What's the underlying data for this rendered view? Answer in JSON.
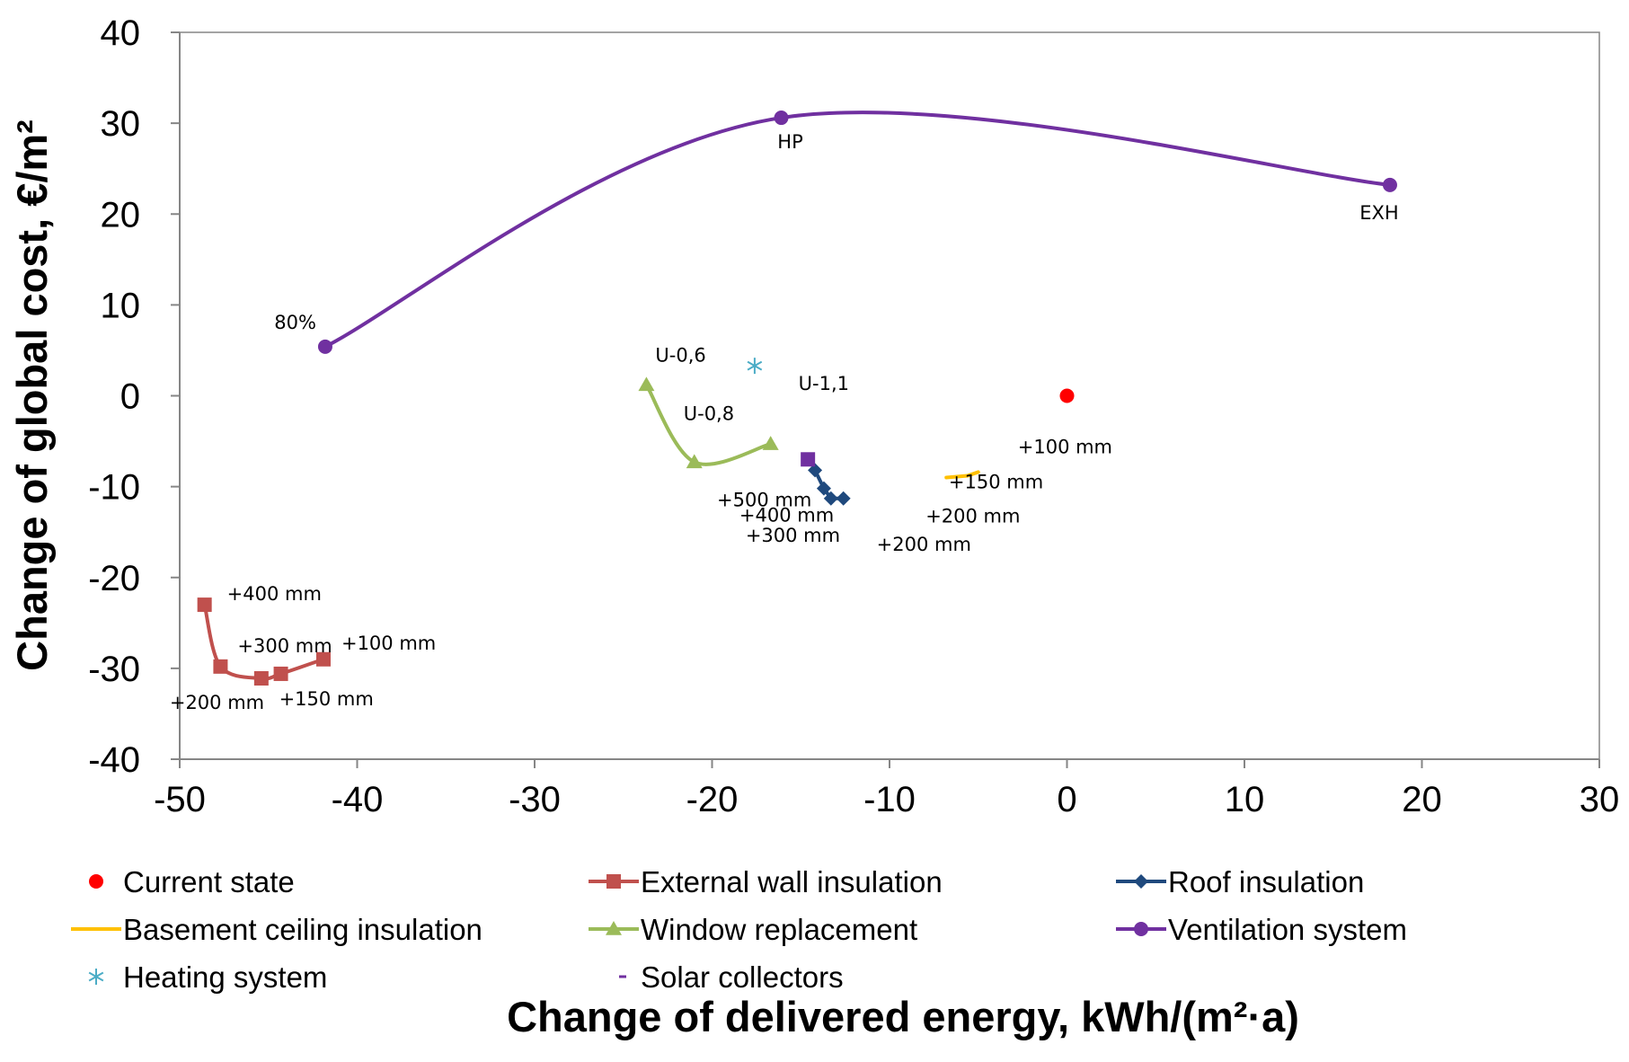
{
  "chart_data": {
    "type": "scatter",
    "title": "",
    "xlabel": "Change of delivered energy, kWh/(m²·a)",
    "ylabel": "Change of global cost, €/m²",
    "xlim": [
      -50,
      30
    ],
    "ylim": [
      -40,
      40
    ],
    "x_ticks": [
      -50,
      -40,
      -30,
      -20,
      -10,
      0,
      10,
      20,
      30
    ],
    "y_ticks": [
      -40,
      -30,
      -20,
      -10,
      0,
      10,
      20,
      30,
      40
    ],
    "grid": false,
    "legend_position": "bottom",
    "series": [
      {
        "name": "Current state",
        "color": "#FF0000",
        "marker": "circle",
        "line": false,
        "smooth": false,
        "points": [
          {
            "x": 0,
            "y": 0
          }
        ]
      },
      {
        "name": "External wall insulation",
        "color": "#C0504D",
        "marker": "square",
        "line": true,
        "smooth": true,
        "points": [
          {
            "x": -48.6,
            "y": -23.0
          },
          {
            "x": -47.7,
            "y": -29.8
          },
          {
            "x": -45.4,
            "y": -31.1
          },
          {
            "x": -44.3,
            "y": -30.6
          },
          {
            "x": -41.9,
            "y": -29.0
          }
        ]
      },
      {
        "name": "Roof insulation",
        "color": "#1F497D",
        "marker": "diamond",
        "line": true,
        "smooth": false,
        "points": [
          {
            "x": -14.2,
            "y": -8.2
          },
          {
            "x": -13.7,
            "y": -10.2
          },
          {
            "x": -13.3,
            "y": -11.3
          },
          {
            "x": -12.6,
            "y": -11.3
          }
        ]
      },
      {
        "name": "Basement ceiling insulation",
        "color": "#FFC000",
        "marker": "none",
        "line": true,
        "smooth": false,
        "points": [
          {
            "x": -6.8,
            "y": -9.0
          },
          {
            "x": -5.6,
            "y": -8.8
          },
          {
            "x": -5.0,
            "y": -8.4
          }
        ]
      },
      {
        "name": "Window replacement",
        "color": "#9BBB59",
        "marker": "triangle",
        "line": true,
        "smooth": true,
        "points": [
          {
            "x": -23.7,
            "y": 1.2
          },
          {
            "x": -21.0,
            "y": -7.3
          },
          {
            "x": -16.7,
            "y": -5.3
          }
        ]
      },
      {
        "name": "Ventilation system",
        "color": "#7030A0",
        "marker": "circle",
        "line": true,
        "smooth": true,
        "points": [
          {
            "x": -41.8,
            "y": 5.4
          },
          {
            "x": -16.1,
            "y": 30.6
          },
          {
            "x": 18.2,
            "y": 23.2
          }
        ]
      },
      {
        "name": "Heating system",
        "color": "#4BACC6",
        "marker": "asterisk",
        "line": false,
        "smooth": false,
        "points": [
          {
            "x": -17.6,
            "y": 3.3
          }
        ]
      },
      {
        "name": "Solar collectors",
        "color": "#7030A0",
        "marker": "square",
        "line": false,
        "smooth": false,
        "points": [
          {
            "x": -14.6,
            "y": -7.0
          }
        ]
      }
    ],
    "annotations": [
      {
        "text": "HP",
        "x": -16.1,
        "y": 30.6
      },
      {
        "text": "EXH",
        "x": 18.2,
        "y": 23.2
      },
      {
        "text": "80%",
        "x": -41.8,
        "y": 5.4
      },
      {
        "text": "U-0,6",
        "x": -23.7,
        "y": 1.2
      },
      {
        "text": "U-0,8",
        "x": -21.0,
        "y": -7.3
      },
      {
        "text": "U-1,1",
        "x": -16.7,
        "y": -5.3
      },
      {
        "text": "+100 mm",
        "x": -5.0,
        "y": -8.4
      },
      {
        "text": "+150 mm",
        "x": -5.6,
        "y": -8.8
      },
      {
        "text": "+200 mm",
        "x": -6.8,
        "y": -9.0
      },
      {
        "text": "+500 mm",
        "x": -14.2,
        "y": -8.2
      },
      {
        "text": "+400 mm",
        "x": -13.7,
        "y": -10.2
      },
      {
        "text": "+300 mm",
        "x": -13.3,
        "y": -11.3
      },
      {
        "text": "+200 mm",
        "x": -12.6,
        "y": -11.3
      },
      {
        "text": "+400 mm",
        "x": -48.6,
        "y": -23.0
      },
      {
        "text": "+300 mm",
        "x": -47.7,
        "y": -29.8
      },
      {
        "text": "+100 mm",
        "x": -41.9,
        "y": -29.0
      },
      {
        "text": "+200 mm",
        "x": -45.4,
        "y": -31.1
      },
      {
        "text": "+150 mm",
        "x": -44.3,
        "y": -30.6
      }
    ]
  }
}
